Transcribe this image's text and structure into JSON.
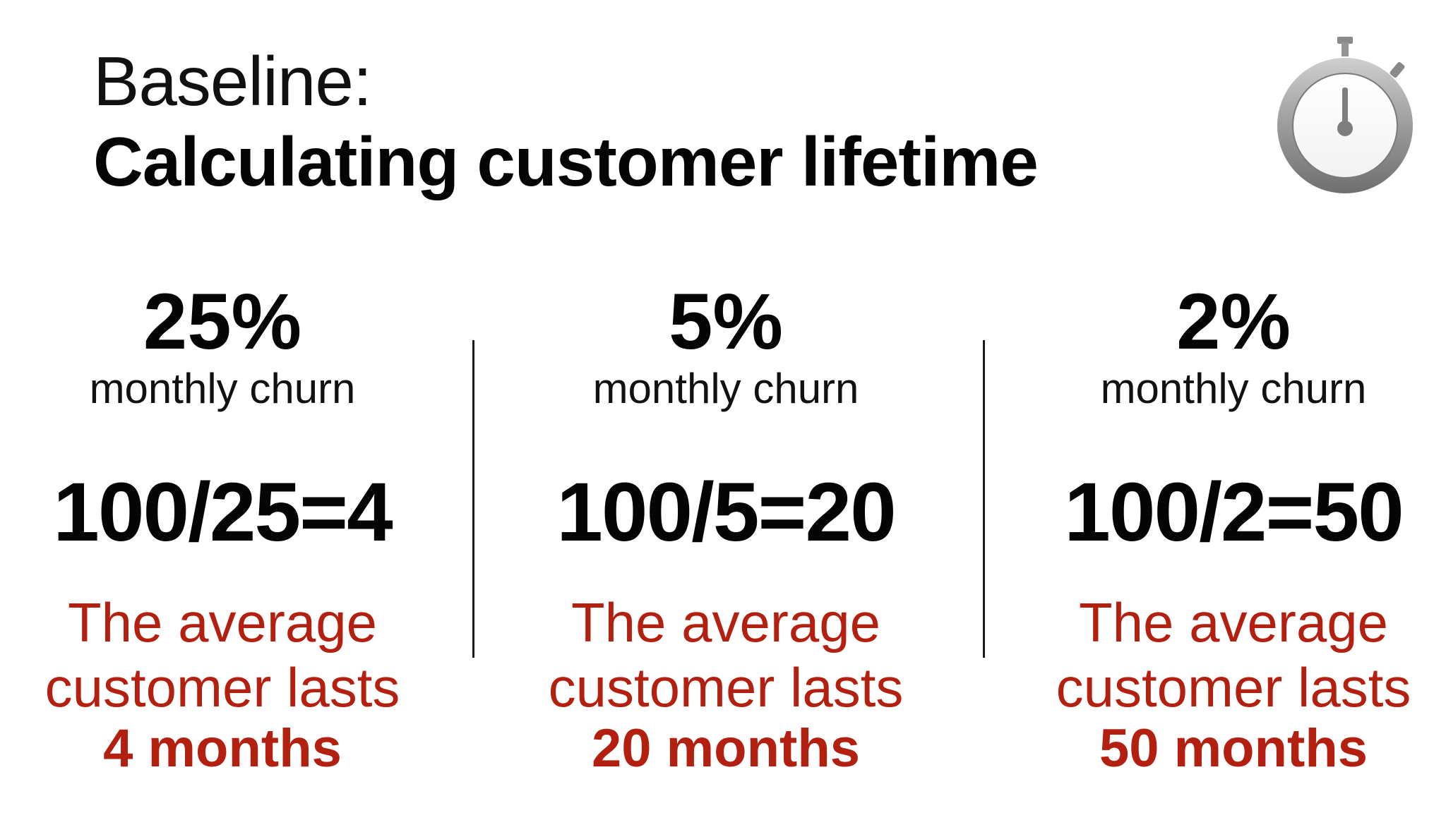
{
  "title": {
    "line1": "Baseline:",
    "line2": "Calculating customer lifetime"
  },
  "icon": "stopwatch-icon",
  "colors": {
    "accent": "#b32010",
    "text": "#050505"
  },
  "columns": [
    {
      "percent": "25%",
      "label": "monthly churn",
      "formula": "100/25=4",
      "result_line1": "The average",
      "result_line2": "customer lasts",
      "result_bold": "4 months"
    },
    {
      "percent": "5%",
      "label": "monthly churn",
      "formula": "100/5=20",
      "result_line1": "The average",
      "result_line2": "customer lasts",
      "result_bold": "20 months"
    },
    {
      "percent": "2%",
      "label": "monthly churn",
      "formula": "100/2=50",
      "result_line1": "The average",
      "result_line2": "customer lasts",
      "result_bold": "50 months"
    }
  ]
}
